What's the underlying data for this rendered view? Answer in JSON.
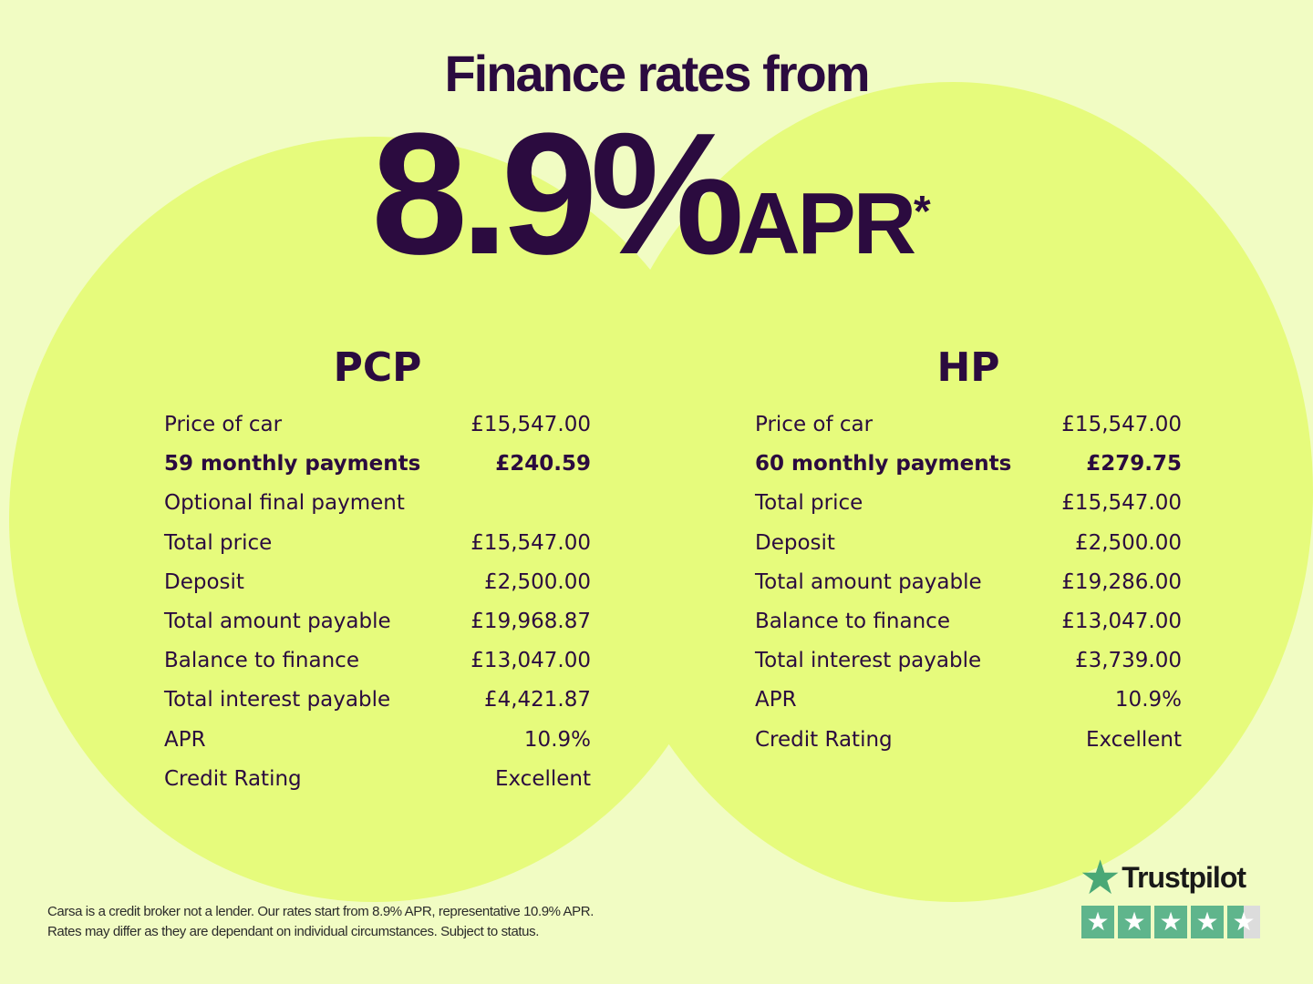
{
  "headline": {
    "line1": "Finance rates from",
    "rate": "8.9%",
    "apr": "APR",
    "asterisk": "*"
  },
  "pcp": {
    "title": "PCP",
    "rows": [
      {
        "label": "Price of car",
        "value": "£15,547.00"
      },
      {
        "label": "59 monthly payments",
        "value": "£240.59",
        "bold": true
      },
      {
        "label": "Optional final payment",
        "value": ""
      },
      {
        "label": "Total price",
        "value": "£15,547.00"
      },
      {
        "label": "Deposit",
        "value": "£2,500.00"
      },
      {
        "label": "Total amount payable",
        "value": "£19,968.87"
      },
      {
        "label": "Balance to finance",
        "value": "£13,047.00"
      },
      {
        "label": "Total interest payable",
        "value": "£4,421.87"
      },
      {
        "label": "APR",
        "value": "10.9%"
      },
      {
        "label": "Credit Rating",
        "value": "Excellent"
      }
    ]
  },
  "hp": {
    "title": "HP",
    "rows": [
      {
        "label": "Price of car",
        "value": "£15,547.00"
      },
      {
        "label": "60 monthly payments",
        "value": "£279.75",
        "bold": true
      },
      {
        "label": "Total price",
        "value": "£15,547.00"
      },
      {
        "label": "Deposit",
        "value": "£2,500.00"
      },
      {
        "label": "Total amount payable",
        "value": "£19,286.00"
      },
      {
        "label": "Balance to finance",
        "value": "£13,047.00"
      },
      {
        "label": "Total interest payable",
        "value": "£3,739.00"
      },
      {
        "label": "APR",
        "value": "10.9%"
      },
      {
        "label": "Credit Rating",
        "value": "Excellent"
      }
    ]
  },
  "footer": {
    "line1": "Carsa is a credit broker not a lender. Our rates start from 8.9% APR, representative 10.9% APR.",
    "line2": "Rates may differ as they are dependant on individual circumstances. Subject to status."
  },
  "trustpilot": {
    "name": "Trustpilot",
    "rating_stars": 4.5,
    "icon": "star-icon"
  },
  "colors": {
    "background": "#f1fcc3",
    "circle": "#e6fb7c",
    "text": "#2b0b3f",
    "trustpilot_green": "#5fb58c"
  }
}
